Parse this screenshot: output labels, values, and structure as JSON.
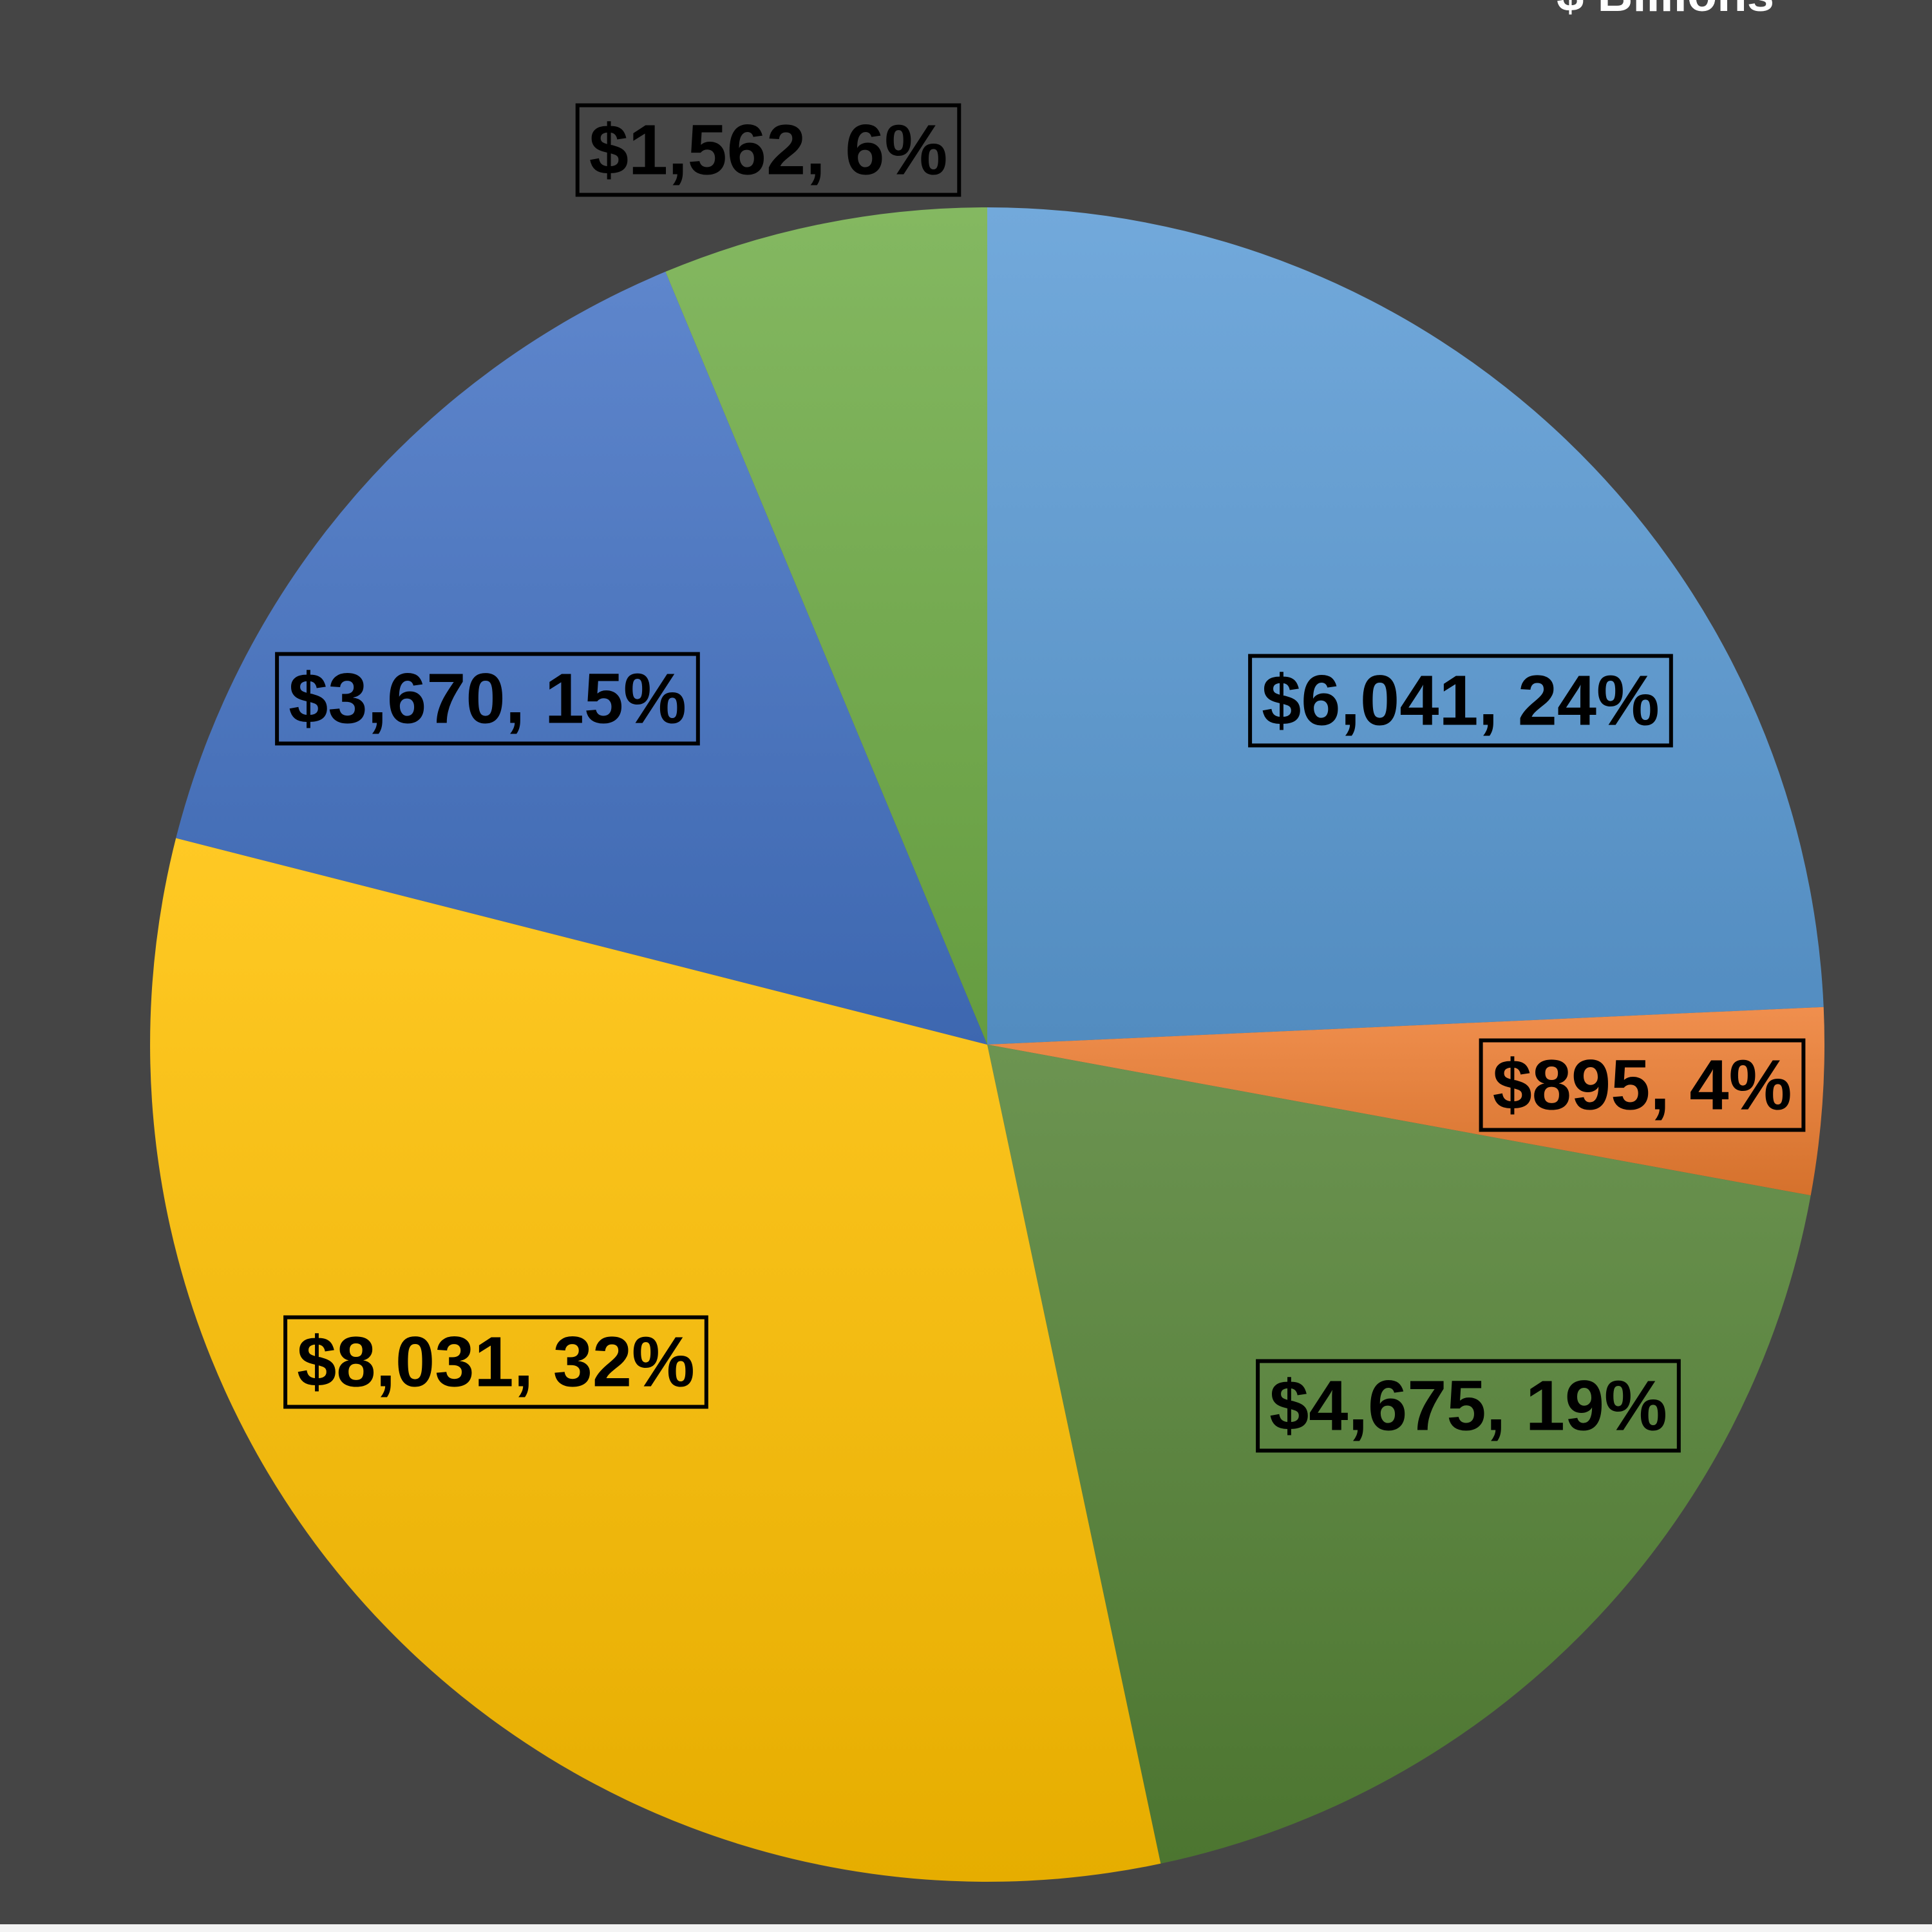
{
  "chart_data": {
    "type": "pie",
    "title": "$ Billions",
    "slices": [
      {
        "label": "$6,041, 24%",
        "value": 6041,
        "percent": 24,
        "color": "#5b9bd5"
      },
      {
        "label": "$895, 4%",
        "value": 895,
        "percent": 4,
        "color": "#ed7d31"
      },
      {
        "label": "$4,675, 19%",
        "value": 4675,
        "percent": 19,
        "color": "#548235"
      },
      {
        "label": "$8,031, 32%",
        "value": 8031,
        "percent": 32,
        "color": "#ffc000"
      },
      {
        "label": "$3,670, 15%",
        "value": 3670,
        "percent": 15,
        "color": "#4472c4"
      },
      {
        "label": "$1,562, 6%",
        "value": 1562,
        "percent": 6,
        "color": "#70ad47"
      }
    ],
    "start_angle_deg": 0,
    "direction": "clockwise"
  }
}
